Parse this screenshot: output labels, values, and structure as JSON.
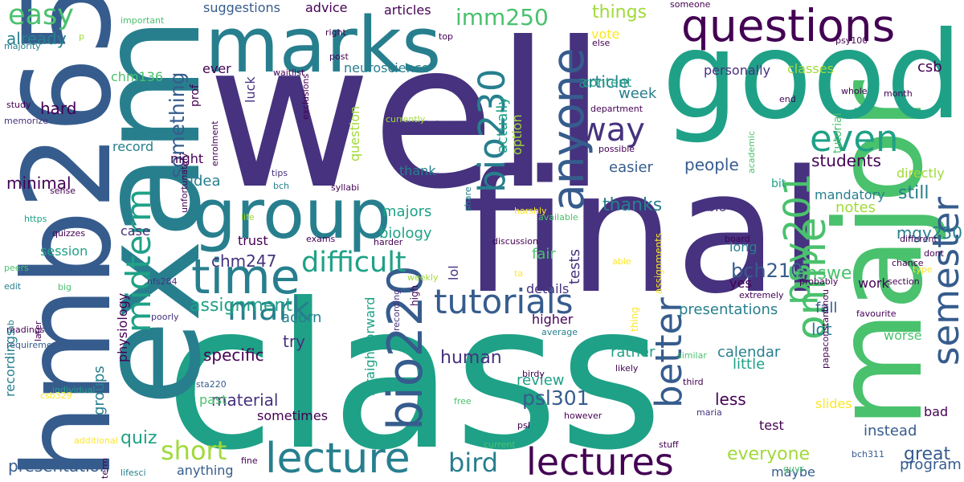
{
  "palette": {
    "background": "#ffffff",
    "colors": [
      "#440154",
      "#46327e",
      "#365c8d",
      "#277f8e",
      "#1fa187",
      "#4ac16d",
      "#a0da39",
      "#fde725"
    ]
  },
  "words": [
    {
      "text": "well",
      "color": "#46327e"
    },
    {
      "text": "class",
      "color": "#1fa187"
    },
    {
      "text": "final",
      "color": "#46327e"
    },
    {
      "text": "major",
      "color": "#4ac16d"
    },
    {
      "text": "good",
      "color": "#1fa187"
    },
    {
      "text": "exam",
      "color": "#277f8e"
    },
    {
      "text": "hmb265",
      "color": "#365c8d"
    },
    {
      "text": "marks",
      "color": "#277f8e"
    },
    {
      "text": "questions",
      "color": "#440154"
    },
    {
      "text": "group",
      "color": "#277f8e"
    },
    {
      "text": "time",
      "color": "#277f8e"
    },
    {
      "text": "lecture",
      "color": "#277f8e"
    },
    {
      "text": "lectures",
      "color": "#440154"
    },
    {
      "text": "tutorials",
      "color": "#365c8d"
    },
    {
      "text": "online",
      "color": "#4ac16d"
    },
    {
      "text": "semester",
      "color": "#365c8d"
    },
    {
      "text": "midterm",
      "color": "#1fa187"
    },
    {
      "text": "anyone",
      "color": "#365c8d"
    },
    {
      "text": "bio220",
      "color": "#365c8d"
    },
    {
      "text": "bio230",
      "color": "#277f8e"
    },
    {
      "text": "psy201",
      "color": "#4ac16d"
    },
    {
      "text": "better",
      "color": "#365c8d"
    },
    {
      "text": "even",
      "color": "#1fa187"
    },
    {
      "text": "way",
      "color": "#46327e"
    },
    {
      "text": "mark",
      "color": "#277f8e"
    },
    {
      "text": "difficult",
      "color": "#1fa187"
    },
    {
      "text": "short",
      "color": "#a0da39"
    },
    {
      "text": "bird",
      "color": "#277f8e"
    },
    {
      "text": "easy",
      "color": "#4ac16d"
    },
    {
      "text": "imm250",
      "color": "#4ac16d"
    },
    {
      "text": "something",
      "color": "#365c8d"
    },
    {
      "text": "assignment",
      "color": "#1fa187"
    },
    {
      "text": "psl301",
      "color": "#365c8d"
    },
    {
      "text": "psl300",
      "color": "#46327e"
    },
    {
      "text": "bch210",
      "color": "#365c8d"
    },
    {
      "text": "human",
      "color": "#46327e"
    },
    {
      "text": "everyone",
      "color": "#a0da39"
    },
    {
      "text": "thanks",
      "color": "#277f8e"
    },
    {
      "text": "presentation",
      "color": "#365c8d"
    },
    {
      "text": "answer",
      "color": "#4ac16d"
    },
    {
      "text": "article",
      "color": "#277f8e"
    },
    {
      "text": "things",
      "color": "#a0da39"
    },
    {
      "text": "quiz",
      "color": "#1fa187"
    },
    {
      "text": "specific",
      "color": "#440154"
    },
    {
      "text": "still",
      "color": "#277f8e"
    },
    {
      "text": "great",
      "color": "#365c8d"
    },
    {
      "text": "students",
      "color": "#440154"
    },
    {
      "text": "people",
      "color": "#365c8d"
    },
    {
      "text": "mgy250",
      "color": "#277f8e"
    },
    {
      "text": "chm247",
      "color": "#46327e"
    },
    {
      "text": "minimal",
      "color": "#440154"
    },
    {
      "text": "lot",
      "color": "#277f8e"
    },
    {
      "text": "less",
      "color": "#440154"
    },
    {
      "text": "material",
      "color": "#46327e"
    },
    {
      "text": "actually",
      "color": "#1fa187"
    },
    {
      "text": "hard",
      "color": "#440154"
    },
    {
      "text": "already",
      "color": "#277f8e"
    },
    {
      "text": "week",
      "color": "#277f8e"
    },
    {
      "text": "easier",
      "color": "#365c8d"
    },
    {
      "text": "content",
      "color": "#1fa187"
    },
    {
      "text": "presentations",
      "color": "#277f8e"
    },
    {
      "text": "fall",
      "color": "#365c8d"
    },
    {
      "text": "try",
      "color": "#46327e"
    },
    {
      "text": "acorn",
      "color": "#277f8e"
    },
    {
      "text": "groups",
      "color": "#277f8e"
    },
    {
      "text": "idea",
      "color": "#277f8e"
    },
    {
      "text": "rather",
      "color": "#1fa187"
    },
    {
      "text": "calendar",
      "color": "#277f8e"
    },
    {
      "text": "little",
      "color": "#1fa187"
    },
    {
      "text": "instead",
      "color": "#365c8d"
    },
    {
      "text": "program",
      "color": "#365c8d"
    },
    {
      "text": "biology",
      "color": "#1fa187"
    },
    {
      "text": "majors",
      "color": "#1fa187"
    },
    {
      "text": "notes",
      "color": "#a0da39"
    },
    {
      "text": "session",
      "color": "#1fa187"
    },
    {
      "text": "review",
      "color": "#1fa187"
    },
    {
      "text": "tests",
      "color": "#46327e"
    },
    {
      "text": "fair",
      "color": "#4ac16d"
    },
    {
      "text": "details",
      "color": "#46327e"
    },
    {
      "text": "higher",
      "color": "#440154"
    },
    {
      "text": "slides",
      "color": "#fde725"
    },
    {
      "text": "test",
      "color": "#440154"
    },
    {
      "text": "maybe",
      "color": "#365c8d"
    },
    {
      "text": "anything",
      "color": "#365c8d"
    },
    {
      "text": "sometimes",
      "color": "#440154"
    },
    {
      "text": "past",
      "color": "#4ac16d"
    },
    {
      "text": "worse",
      "color": "#4ac16d"
    },
    {
      "text": "work",
      "color": "#440154"
    },
    {
      "text": "yes",
      "color": "#440154"
    },
    {
      "text": "long",
      "color": "#277f8e"
    },
    {
      "text": "record",
      "color": "#277f8e"
    },
    {
      "text": "night",
      "color": "#440154"
    },
    {
      "text": "bio",
      "color": "#46327e"
    },
    {
      "text": "mandatory",
      "color": "#277f8e"
    },
    {
      "text": "recordings",
      "color": "#277f8e"
    },
    {
      "text": "physiology",
      "color": "#440154"
    },
    {
      "text": "trust",
      "color": "#440154"
    },
    {
      "text": "case",
      "color": "#46327e"
    },
    {
      "text": "csb",
      "color": "#440154"
    },
    {
      "text": "classes",
      "color": "#a0da39"
    },
    {
      "text": "personally",
      "color": "#46327e"
    },
    {
      "text": "neuroscience",
      "color": "#277f8e"
    },
    {
      "text": "suggestions",
      "color": "#365c8d"
    },
    {
      "text": "advice",
      "color": "#440154"
    },
    {
      "text": "articles",
      "color": "#440154"
    },
    {
      "text": "chm136",
      "color": "#4ac16d"
    },
    {
      "text": "directly",
      "color": "#a0da39"
    },
    {
      "text": "bad",
      "color": "#440154"
    },
    {
      "text": "straightforward",
      "color": "#1fa187"
    },
    {
      "text": "question",
      "color": "#a0da39"
    },
    {
      "text": "lol",
      "color": "#46327e"
    },
    {
      "text": "thank",
      "color": "#277f8e"
    },
    {
      "text": "option",
      "color": "#a0da39"
    },
    {
      "text": "bit",
      "color": "#1fa187"
    },
    {
      "text": "luck",
      "color": "#46327e"
    },
    {
      "text": "prof",
      "color": "#440154"
    },
    {
      "text": "ever",
      "color": "#440154"
    },
    {
      "text": "vote",
      "color": "#fde725"
    },
    {
      "text": "tutorial",
      "color": "#4ac16d"
    },
    {
      "text": "important",
      "color": "#4ac16d"
    },
    {
      "text": "majority",
      "color": "#277f8e"
    },
    {
      "text": "study",
      "color": "#440154"
    },
    {
      "text": "memorize",
      "color": "#46327e"
    },
    {
      "text": "waitlist",
      "color": "#440154"
    },
    {
      "text": "exclusions",
      "color": "#440154"
    },
    {
      "text": "enrolment",
      "color": "#440154"
    },
    {
      "text": "tips",
      "color": "#46327e"
    },
    {
      "text": "syllabi",
      "color": "#440154"
    },
    {
      "text": "bch",
      "color": "#277f8e"
    },
    {
      "text": "sense",
      "color": "#440154"
    },
    {
      "text": "https",
      "color": "#1fa187"
    },
    {
      "text": "quizzes",
      "color": "#440154"
    },
    {
      "text": "exams",
      "color": "#440154"
    },
    {
      "text": "harder",
      "color": "#440154"
    },
    {
      "text": "peers",
      "color": "#4ac16d"
    },
    {
      "text": "edit",
      "color": "#277f8e"
    },
    {
      "text": "big",
      "color": "#4ac16d"
    },
    {
      "text": "nfs284",
      "color": "#46327e"
    },
    {
      "text": "unfortunately",
      "color": "#440154"
    },
    {
      "text": "requirements",
      "color": "#365c8d"
    },
    {
      "text": "readings",
      "color": "#440154"
    },
    {
      "text": "lab",
      "color": "#277f8e"
    },
    {
      "text": "later",
      "color": "#440154"
    },
    {
      "text": "individual",
      "color": "#1fa187"
    },
    {
      "text": "csb329",
      "color": "#fde725"
    },
    {
      "text": "additional",
      "color": "#fde725"
    },
    {
      "text": "term",
      "color": "#440154"
    },
    {
      "text": "lifesci",
      "color": "#277f8e"
    },
    {
      "text": "fine",
      "color": "#440154"
    },
    {
      "text": "poorly",
      "color": "#46327e"
    },
    {
      "text": "high",
      "color": "#440154"
    },
    {
      "text": "recording",
      "color": "#46327e"
    },
    {
      "text": "weekly",
      "color": "#a0da39"
    },
    {
      "text": "sta220",
      "color": "#365c8d"
    },
    {
      "text": "birdy",
      "color": "#440154"
    },
    {
      "text": "average",
      "color": "#277f8e"
    },
    {
      "text": "free",
      "color": "#4ac16d"
    },
    {
      "text": "psl",
      "color": "#440154"
    },
    {
      "text": "current",
      "color": "#4ac16d"
    },
    {
      "text": "however",
      "color": "#440154"
    },
    {
      "text": "maria",
      "color": "#46327e"
    },
    {
      "text": "stuff",
      "color": "#440154"
    },
    {
      "text": "guys",
      "color": "#4ac16d"
    },
    {
      "text": "bch311",
      "color": "#365c8d"
    },
    {
      "text": "ta",
      "color": "#fde725"
    },
    {
      "text": "thing",
      "color": "#fde725"
    },
    {
      "text": "assignments",
      "color": "#fde725"
    },
    {
      "text": "likely",
      "color": "#440154"
    },
    {
      "text": "similar",
      "color": "#4ac16d"
    },
    {
      "text": "third",
      "color": "#440154"
    },
    {
      "text": "papaconstantinou",
      "color": "#440154"
    },
    {
      "text": "favourite",
      "color": "#440154"
    },
    {
      "text": "extremely",
      "color": "#440154"
    },
    {
      "text": "probably",
      "color": "#440154"
    },
    {
      "text": "section",
      "color": "#440154"
    },
    {
      "text": "chance",
      "color": "#440154"
    },
    {
      "text": "type",
      "color": "#fde725"
    },
    {
      "text": "dont",
      "color": "#440154"
    },
    {
      "text": "different",
      "color": "#440154"
    },
    {
      "text": "board",
      "color": "#440154"
    },
    {
      "text": "able",
      "color": "#fde725"
    },
    {
      "text": "discussion",
      "color": "#440154"
    },
    {
      "text": "harshly",
      "color": "#fde725"
    },
    {
      "text": "available",
      "color": "#4ac16d"
    },
    {
      "text": "life",
      "color": "#a0da39"
    },
    {
      "text": "share",
      "color": "#277f8e"
    },
    {
      "text": "possible",
      "color": "#440154"
    },
    {
      "text": "currently",
      "color": "#a0da39"
    },
    {
      "text": "department",
      "color": "#440154"
    },
    {
      "text": "academic",
      "color": "#4ac16d"
    },
    {
      "text": "end",
      "color": "#440154"
    },
    {
      "text": "whole",
      "color": "#440154"
    },
    {
      "text": "month",
      "color": "#440154"
    },
    {
      "text": "post",
      "color": "#440154"
    },
    {
      "text": "right",
      "color": "#440154"
    },
    {
      "text": "top",
      "color": "#440154"
    },
    {
      "text": "else",
      "color": "#440154"
    },
    {
      "text": "psy100",
      "color": "#440154"
    },
    {
      "text": "someone",
      "color": "#440154"
    },
    {
      "text": "p",
      "color": "#a0da39"
    }
  ]
}
